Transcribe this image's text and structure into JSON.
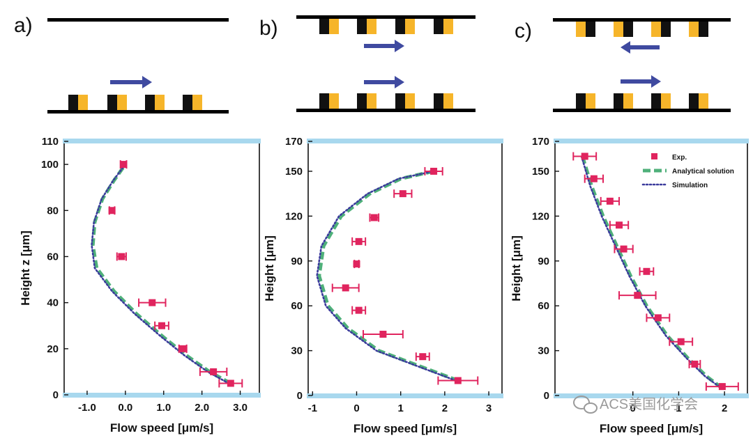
{
  "panel_labels": [
    "a)",
    "b)",
    "c)"
  ],
  "watermark": {
    "text": "ACS美国化学会",
    "icon": "wechat-icon"
  },
  "colors": {
    "exp": "#e0245e",
    "analytical": "#4fb07a",
    "simulation": "#3b3b9c",
    "arrow": "#3f4aa0",
    "frame": "#a8d8ee",
    "block_dark": "#111111",
    "block_gold": "#f6b52a"
  },
  "schematics": [
    {
      "panel": "a",
      "top_surface": "plain",
      "top_flow": "none",
      "bottom_flow": "right"
    },
    {
      "panel": "b",
      "top_surface": "striped",
      "top_flow": "right",
      "bottom_flow": "right"
    },
    {
      "panel": "c",
      "top_surface": "striped-mirrored",
      "top_flow": "left",
      "bottom_flow": "right"
    }
  ],
  "chart_data": [
    {
      "panel": "a",
      "type": "scatter",
      "xlabel": "Flow speed [μm/s]",
      "ylabel": "Height z [μm]",
      "xlim": [
        -1.6,
        3.5
      ],
      "ylim": [
        0,
        110
      ],
      "xticks": [
        -1.0,
        0.0,
        1.0,
        2.0,
        3.0
      ],
      "xtick_labels": [
        "-1.0",
        "0.0",
        "1.0",
        "2.0",
        "3.0"
      ],
      "yticks": [
        0,
        20,
        40,
        60,
        80,
        100,
        110
      ],
      "ytick_labels": [
        "0",
        "20",
        "40",
        "60",
        "80",
        "100",
        "110"
      ],
      "series": [
        {
          "kind": "exp",
          "points": [
            [
              -0.05,
              100,
              0.08
            ],
            [
              -0.35,
              80,
              0.07
            ],
            [
              -0.1,
              60,
              0.12
            ],
            [
              0.7,
              40,
              0.35
            ],
            [
              0.95,
              30,
              0.18
            ],
            [
              1.5,
              20,
              0.1
            ],
            [
              2.3,
              10,
              0.35
            ],
            [
              2.75,
              5,
              0.3
            ]
          ]
        },
        {
          "kind": "analytical",
          "points": [
            [
              2.75,
              5
            ],
            [
              2.2,
              10
            ],
            [
              1.6,
              17
            ],
            [
              1.0,
              25
            ],
            [
              0.3,
              35
            ],
            [
              -0.3,
              45
            ],
            [
              -0.75,
              55
            ],
            [
              -0.85,
              65
            ],
            [
              -0.8,
              75
            ],
            [
              -0.6,
              85
            ],
            [
              -0.3,
              93
            ],
            [
              0.0,
              100
            ]
          ]
        },
        {
          "kind": "simulation",
          "points": [
            [
              2.7,
              5
            ],
            [
              2.15,
              10
            ],
            [
              1.55,
              17
            ],
            [
              0.95,
              25
            ],
            [
              0.25,
              35
            ],
            [
              -0.35,
              45
            ],
            [
              -0.8,
              55
            ],
            [
              -0.88,
              65
            ],
            [
              -0.82,
              75
            ],
            [
              -0.62,
              85
            ],
            [
              -0.32,
              93
            ],
            [
              0.0,
              100
            ]
          ]
        }
      ]
    },
    {
      "panel": "b",
      "type": "scatter",
      "xlabel": "Flow speed [μm/s]",
      "ylabel": "Height [μm]",
      "xlim": [
        -1.1,
        3.3
      ],
      "ylim": [
        0,
        170
      ],
      "xticks": [
        -1,
        0,
        1,
        2,
        3
      ],
      "xtick_labels": [
        "-1",
        "0",
        "1",
        "2",
        "3"
      ],
      "yticks": [
        0,
        30,
        60,
        90,
        120,
        150,
        170
      ],
      "ytick_labels": [
        "0",
        "30",
        "60",
        "90",
        "120",
        "150",
        "170"
      ],
      "series": [
        {
          "kind": "exp",
          "points": [
            [
              2.3,
              10,
              0.45
            ],
            [
              1.5,
              26,
              0.15
            ],
            [
              0.6,
              41,
              0.45
            ],
            [
              0.05,
              57,
              0.15
            ],
            [
              -0.25,
              72,
              0.3
            ],
            [
              0.0,
              88,
              0.05
            ],
            [
              0.05,
              103,
              0.15
            ],
            [
              0.4,
              119,
              0.1
            ],
            [
              1.05,
              135,
              0.2
            ],
            [
              1.75,
              150,
              0.2
            ]
          ]
        },
        {
          "kind": "analytical",
          "points": [
            [
              2.3,
              10
            ],
            [
              1.4,
              20
            ],
            [
              0.5,
              30
            ],
            [
              -0.2,
              45
            ],
            [
              -0.65,
              60
            ],
            [
              -0.85,
              80
            ],
            [
              -0.75,
              100
            ],
            [
              -0.35,
              120
            ],
            [
              0.3,
              135
            ],
            [
              1.0,
              145
            ],
            [
              1.75,
              150
            ]
          ]
        },
        {
          "kind": "simulation",
          "points": [
            [
              2.25,
              10
            ],
            [
              1.35,
              20
            ],
            [
              0.45,
              30
            ],
            [
              -0.25,
              45
            ],
            [
              -0.7,
              60
            ],
            [
              -0.9,
              80
            ],
            [
              -0.8,
              100
            ],
            [
              -0.4,
              120
            ],
            [
              0.25,
              135
            ],
            [
              0.95,
              145
            ],
            [
              1.75,
              150
            ]
          ]
        }
      ]
    },
    {
      "panel": "c",
      "type": "scatter",
      "xlabel": "Flow speed [μm/s]",
      "ylabel": "Height [μm]",
      "xlim": [
        -1.7,
        2.5
      ],
      "ylim": [
        0,
        170
      ],
      "xticks": [
        0,
        1,
        2
      ],
      "xtick_labels": [
        "0",
        "1",
        "2"
      ],
      "yticks": [
        0,
        30,
        60,
        90,
        120,
        150,
        170
      ],
      "ytick_labels": [
        "0",
        "30",
        "60",
        "90",
        "120",
        "150",
        "170"
      ],
      "legend": {
        "position": "top-right",
        "entries": [
          {
            "kind": "exp",
            "label": "Exp."
          },
          {
            "kind": "analytical",
            "label": "Analytical solution"
          },
          {
            "kind": "simulation",
            "label": "Simulation"
          }
        ]
      },
      "series": [
        {
          "kind": "exp",
          "points": [
            [
              -1.05,
              160,
              0.25
            ],
            [
              -0.85,
              145,
              0.2
            ],
            [
              -0.5,
              130,
              0.2
            ],
            [
              -0.3,
              114,
              0.2
            ],
            [
              -0.2,
              98,
              0.2
            ],
            [
              0.3,
              83,
              0.15
            ],
            [
              0.1,
              67,
              0.4
            ],
            [
              0.55,
              52,
              0.25
            ],
            [
              1.05,
              36,
              0.25
            ],
            [
              1.35,
              21,
              0.12
            ],
            [
              1.95,
              6,
              0.35
            ]
          ]
        },
        {
          "kind": "analytical",
          "points": [
            [
              -1.1,
              160
            ],
            [
              -0.9,
              140
            ],
            [
              -0.65,
              120
            ],
            [
              -0.35,
              100
            ],
            [
              -0.05,
              80
            ],
            [
              0.3,
              60
            ],
            [
              0.75,
              40
            ],
            [
              1.2,
              25
            ],
            [
              1.6,
              13
            ],
            [
              1.9,
              6
            ]
          ]
        },
        {
          "kind": "simulation",
          "points": [
            [
              -1.12,
              160
            ],
            [
              -0.93,
              140
            ],
            [
              -0.68,
              120
            ],
            [
              -0.38,
              100
            ],
            [
              -0.08,
              80
            ],
            [
              0.27,
              60
            ],
            [
              0.72,
              40
            ],
            [
              1.17,
              25
            ],
            [
              1.57,
              13
            ],
            [
              1.88,
              6
            ]
          ]
        }
      ]
    }
  ]
}
